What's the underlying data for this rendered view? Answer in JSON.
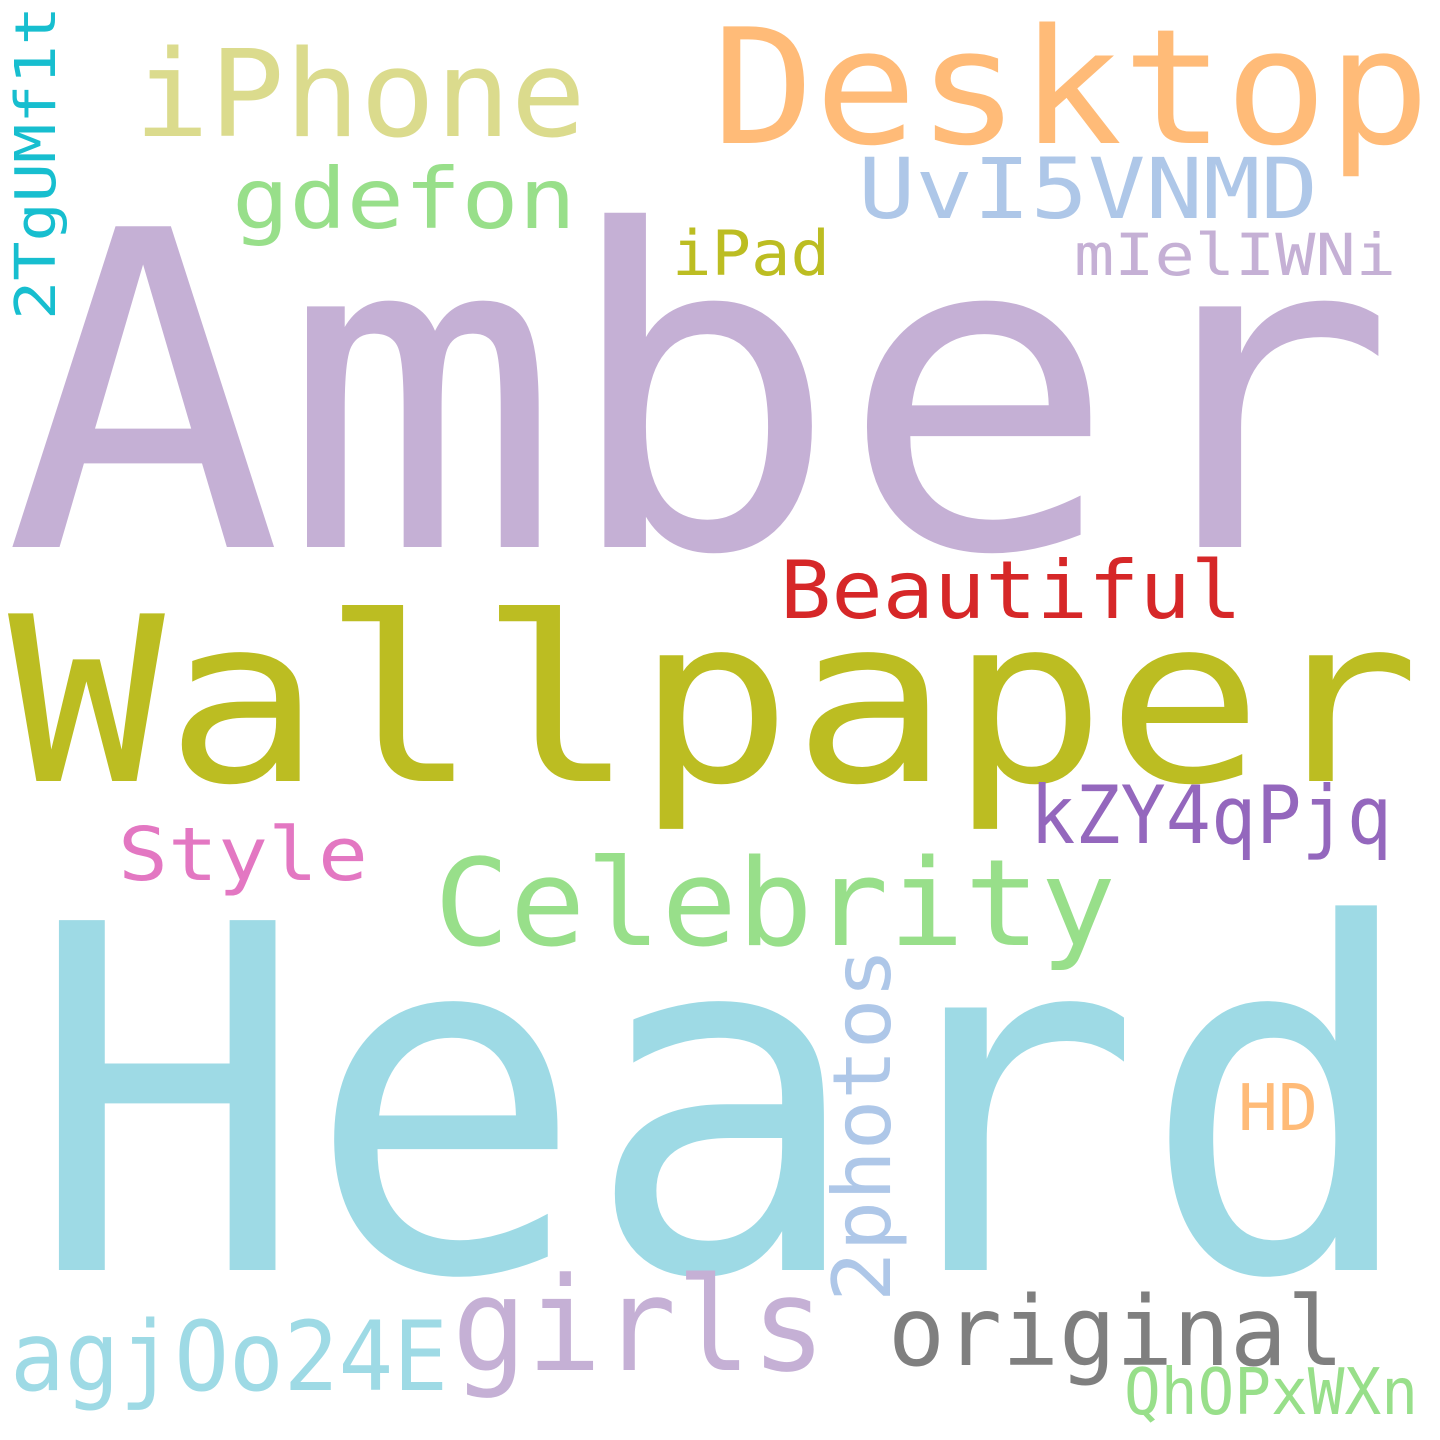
{
  "words": [
    {
      "text": "Amber",
      "color": "#c5b0d5"
    },
    {
      "text": "Heard",
      "color": "#9edae5"
    },
    {
      "text": "Wallpaper",
      "color": "#bcbd22"
    },
    {
      "text": "Desktop",
      "color": "#ffbb78"
    },
    {
      "text": "iPhone",
      "color": "#dbdb8d"
    },
    {
      "text": "gdefon",
      "color": "#98df8a"
    },
    {
      "text": "UvI5VNMD",
      "color": "#aec7e8"
    },
    {
      "text": "iPad",
      "color": "#bcbd22"
    },
    {
      "text": "mIelIWNi",
      "color": "#c5b0d5"
    },
    {
      "text": "2TgUMf1t",
      "color": "#17becf"
    },
    {
      "text": "Beautiful",
      "color": "#d62728"
    },
    {
      "text": "kZY4qPjq",
      "color": "#9467bd"
    },
    {
      "text": "Style",
      "color": "#e377c2"
    },
    {
      "text": "Celebrity",
      "color": "#98df8a"
    },
    {
      "text": "2photos",
      "color": "#aec7e8"
    },
    {
      "text": "HD",
      "color": "#ffbb78"
    },
    {
      "text": "girls",
      "color": "#c5b0d5"
    },
    {
      "text": "original",
      "color": "#7f7f7f"
    },
    {
      "text": "agjOo24E",
      "color": "#9edae5"
    },
    {
      "text": "QhOPxWXn",
      "color": "#98df8a"
    }
  ]
}
